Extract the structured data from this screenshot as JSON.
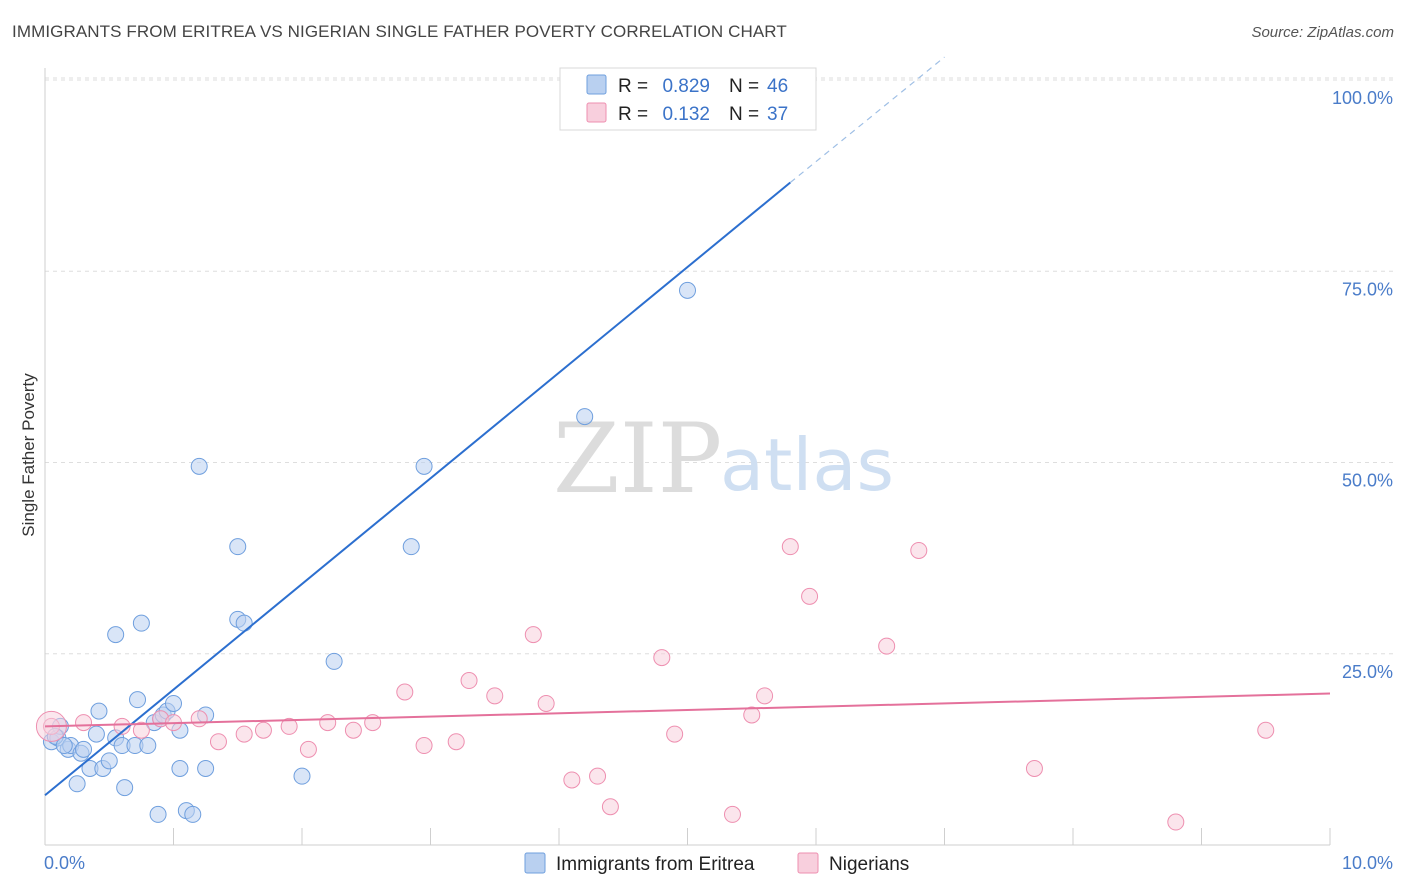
{
  "title": "IMMIGRANTS FROM ERITREA VS NIGERIAN SINGLE FATHER POVERTY CORRELATION CHART",
  "source": "Source: ZipAtlas.com",
  "watermark": {
    "zip": "ZIP",
    "atlas": "atlas"
  },
  "colors": {
    "blue": "#6f9fde",
    "blue_line": "#2c6fcf",
    "pink": "#ee8fb0",
    "pink_line": "#e4719b"
  },
  "chart_data": {
    "type": "scatter",
    "title": "IMMIGRANTS FROM ERITREA VS NIGERIAN SINGLE FATHER POVERTY CORRELATION CHART",
    "xlabel": "",
    "ylabel": "Single Father Poverty",
    "xlim": [
      0,
      10
    ],
    "ylim": [
      0,
      100
    ],
    "x_tick_labels": {
      "min": "0.0%",
      "max": "10.0%"
    },
    "y_ticks": [
      {
        "value": 25,
        "label": "25.0%"
      },
      {
        "value": 50,
        "label": "50.0%"
      },
      {
        "value": 75,
        "label": "75.0%"
      },
      {
        "value": 100,
        "label": "100.0%"
      }
    ],
    "grid": true,
    "legend_position": "top-center",
    "stats": [
      {
        "r_label": "R =",
        "r": "0.829",
        "n_label": "N =",
        "n": "46"
      },
      {
        "r_label": "R =",
        "r": "0.132",
        "n_label": "N =",
        "n": "37"
      }
    ],
    "series": [
      {
        "name": "Immigrants from Eritrea",
        "trend": {
          "x0": 0,
          "y0": 6.5,
          "x1": 5.8,
          "y1": 86.6,
          "dash_x1": 7.0,
          "dash_y1": 103
        },
        "points": [
          [
            0.05,
            13.5
          ],
          [
            0.1,
            14
          ],
          [
            0.12,
            15.5
          ],
          [
            0.18,
            12.5
          ],
          [
            0.2,
            13
          ],
          [
            0.25,
            8
          ],
          [
            0.28,
            12
          ],
          [
            0.3,
            12.5
          ],
          [
            0.35,
            10
          ],
          [
            0.4,
            14.5
          ],
          [
            0.42,
            17.5
          ],
          [
            0.45,
            10
          ],
          [
            0.5,
            11
          ],
          [
            0.55,
            14
          ],
          [
            0.6,
            13
          ],
          [
            0.55,
            27.5
          ],
          [
            0.62,
            7.5
          ],
          [
            0.7,
            13
          ],
          [
            0.72,
            19
          ],
          [
            0.75,
            29
          ],
          [
            0.8,
            13
          ],
          [
            0.85,
            16
          ],
          [
            0.88,
            4
          ],
          [
            0.9,
            16.5
          ],
          [
            0.92,
            17
          ],
          [
            0.95,
            17.5
          ],
          [
            1.0,
            18.5
          ],
          [
            1.05,
            15
          ],
          [
            1.05,
            10
          ],
          [
            1.1,
            4.5
          ],
          [
            1.15,
            4
          ],
          [
            1.2,
            49.5
          ],
          [
            1.25,
            10
          ],
          [
            1.25,
            17
          ],
          [
            1.5,
            29.5
          ],
          [
            1.5,
            39
          ],
          [
            1.55,
            29
          ],
          [
            2.0,
            9
          ],
          [
            2.25,
            24
          ],
          [
            2.85,
            39
          ],
          [
            2.95,
            49.5
          ],
          [
            4.2,
            56
          ],
          [
            4.35,
            100
          ],
          [
            5.0,
            72.5
          ],
          [
            0.08,
            14.2
          ],
          [
            0.15,
            13
          ]
        ]
      },
      {
        "name": "Nigerians",
        "trend": {
          "x0": 0,
          "y0": 15.5,
          "x1": 10,
          "y1": 19.8
        },
        "points": [
          [
            0.05,
            15.5
          ],
          [
            0.3,
            16
          ],
          [
            0.6,
            15.5
          ],
          [
            0.75,
            15
          ],
          [
            0.9,
            16.5
          ],
          [
            1.0,
            16
          ],
          [
            1.2,
            16.5
          ],
          [
            1.35,
            13.5
          ],
          [
            1.55,
            14.5
          ],
          [
            1.7,
            15
          ],
          [
            1.9,
            15.5
          ],
          [
            2.05,
            12.5
          ],
          [
            2.2,
            16
          ],
          [
            2.4,
            15
          ],
          [
            2.55,
            16
          ],
          [
            2.8,
            20
          ],
          [
            2.95,
            13
          ],
          [
            3.2,
            13.5
          ],
          [
            3.3,
            21.5
          ],
          [
            3.5,
            19.5
          ],
          [
            3.8,
            27.5
          ],
          [
            3.9,
            18.5
          ],
          [
            4.1,
            8.5
          ],
          [
            4.3,
            9
          ],
          [
            4.4,
            5
          ],
          [
            4.8,
            24.5
          ],
          [
            4.9,
            14.5
          ],
          [
            5.35,
            4
          ],
          [
            5.5,
            17
          ],
          [
            5.6,
            19.5
          ],
          [
            5.8,
            39
          ],
          [
            5.95,
            32.5
          ],
          [
            6.55,
            26
          ],
          [
            6.8,
            38.5
          ],
          [
            7.7,
            10
          ],
          [
            8.8,
            3
          ],
          [
            9.5,
            15
          ]
        ]
      }
    ]
  }
}
